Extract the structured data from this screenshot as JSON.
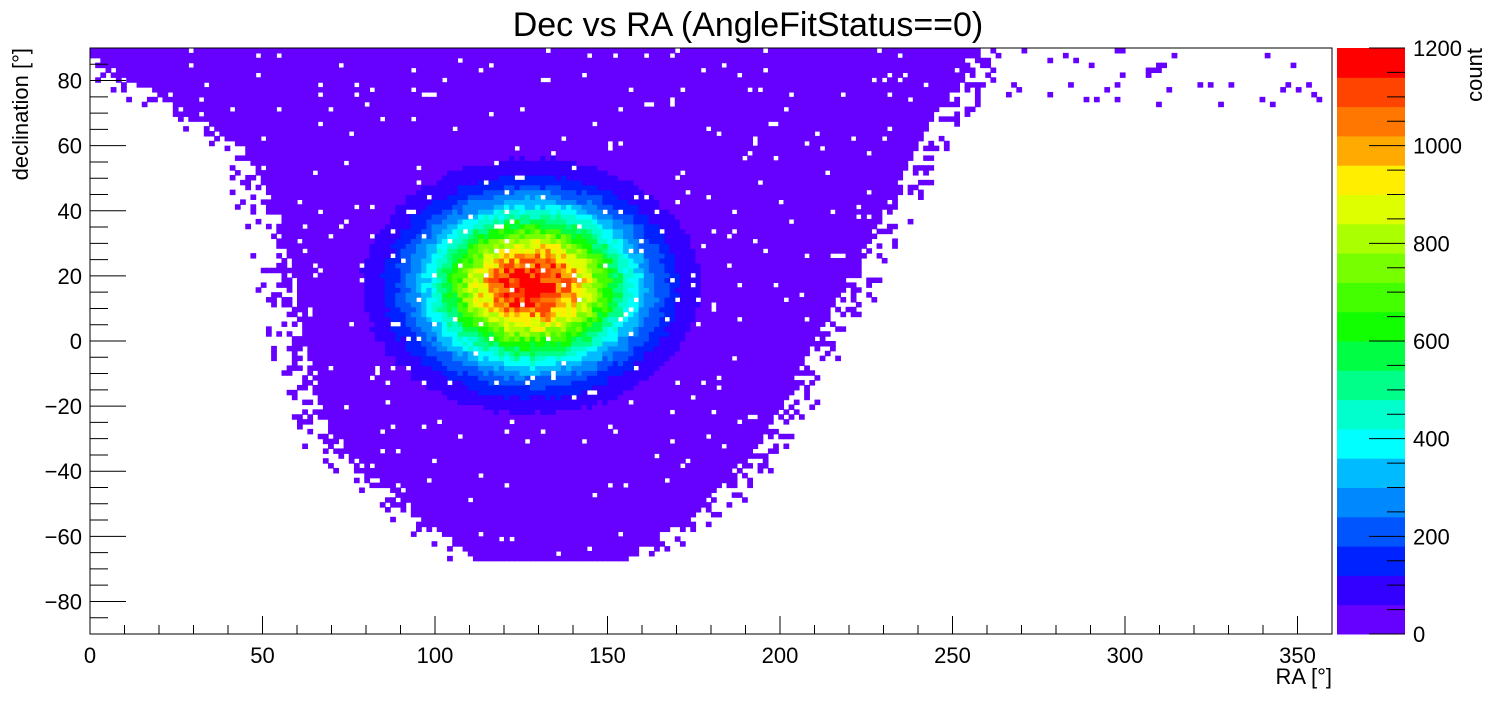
{
  "chart_data": {
    "type": "heatmap",
    "title": "Dec vs RA (AngleFitStatus==0)",
    "xlabel": "RA [°]",
    "ylabel": "declination [°]",
    "zlabel": "count",
    "xlim": [
      0,
      360
    ],
    "ylim": [
      -90,
      90
    ],
    "zlim": [
      0,
      1200
    ],
    "x_ticks": [
      0,
      50,
      100,
      150,
      200,
      250,
      300,
      350
    ],
    "y_ticks": [
      -80,
      -60,
      -40,
      -20,
      0,
      20,
      40,
      60,
      80
    ],
    "z_ticks": [
      0,
      200,
      400,
      600,
      800,
      1000,
      1200
    ],
    "x_tick_labels": [
      "0",
      "50",
      "100",
      "150",
      "200",
      "250",
      "300",
      "350"
    ],
    "y_tick_labels": [
      "−80",
      "−60",
      "−40",
      "−20",
      "0",
      "20",
      "40",
      "60",
      "80"
    ],
    "z_tick_labels": [
      "0",
      "200",
      "400",
      "600",
      "800",
      "1000",
      "1200"
    ],
    "bin_width": 1.5,
    "bin_height": 1.5,
    "peak": {
      "ra": 128,
      "dec": 17,
      "count": 1200
    },
    "core_sigma_ra": 20,
    "core_sigma_dec": 16,
    "sky_region": {
      "description_points_dec": [
        -67,
        -50,
        -30,
        0,
        30,
        60,
        88
      ],
      "ra_min": [
        112,
        92,
        70,
        62,
        58,
        45,
        0
      ],
      "ra_max": [
        155,
        178,
        195,
        210,
        225,
        240,
        255
      ]
    },
    "grid": false,
    "palette": "rainbow",
    "colors": [
      "#6600ff",
      "#3300ff",
      "#0022ff",
      "#0055ff",
      "#0088ff",
      "#00bbff",
      "#00ffff",
      "#00ffcc",
      "#00ff88",
      "#00ff44",
      "#11ff00",
      "#44ff00",
      "#77ff00",
      "#aaff00",
      "#ddff00",
      "#ffee00",
      "#ffaa00",
      "#ff7700",
      "#ff4400",
      "#ff0000"
    ]
  }
}
